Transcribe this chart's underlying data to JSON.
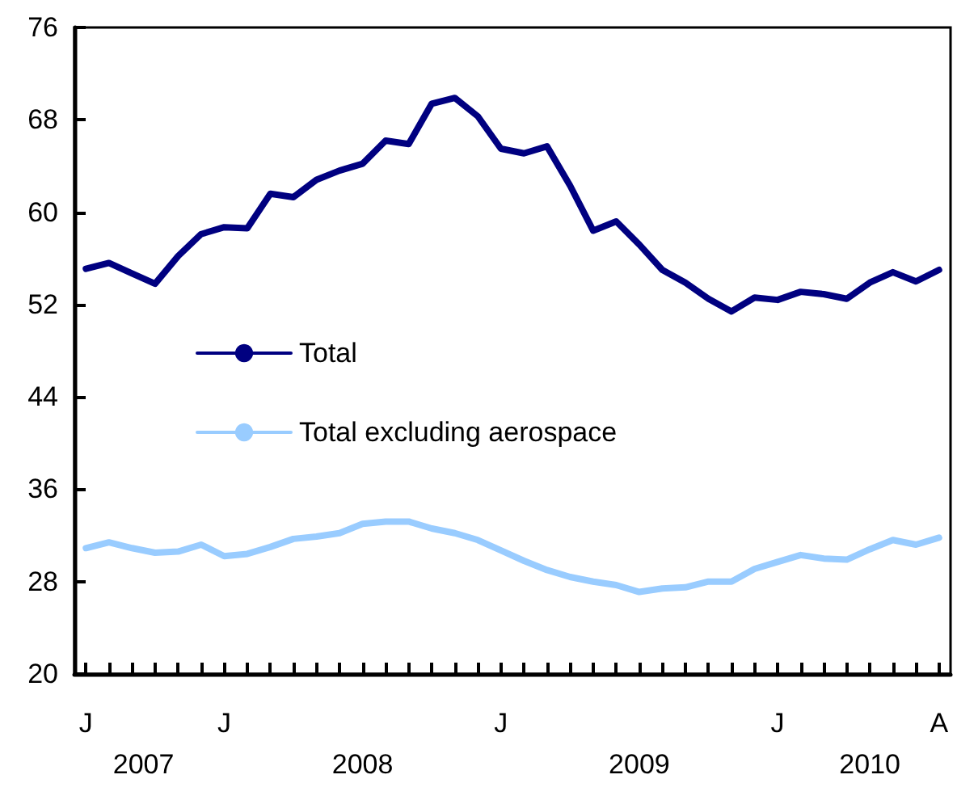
{
  "chart_data": {
    "type": "line",
    "categories": [
      "J",
      null,
      null,
      null,
      null,
      null,
      "J",
      null,
      null,
      null,
      null,
      null,
      null,
      null,
      null,
      null,
      null,
      null,
      "J",
      null,
      null,
      null,
      null,
      null,
      null,
      null,
      null,
      null,
      null,
      null,
      "J",
      null,
      null,
      null,
      null,
      null,
      null,
      "A"
    ],
    "series": [
      {
        "name": "Total",
        "color": "#000080",
        "values": [
          55.1,
          55.6,
          54.7,
          53.8,
          56.2,
          58.1,
          58.7,
          58.6,
          61.6,
          61.3,
          62.8,
          63.6,
          64.2,
          66.2,
          65.9,
          69.4,
          69.9,
          68.3,
          65.5,
          65.1,
          65.7,
          62.3,
          58.4,
          59.2,
          57.2,
          55.0,
          53.9,
          52.5,
          51.4,
          52.6,
          52.4,
          53.1,
          52.9,
          52.5,
          53.9,
          54.8,
          54.0,
          55.0
        ]
      },
      {
        "name": "Total excluding aerospace",
        "color": "#99ccff",
        "values": [
          30.9,
          31.4,
          30.9,
          30.5,
          30.6,
          31.2,
          30.2,
          30.4,
          31.0,
          31.7,
          31.9,
          32.2,
          33.0,
          33.2,
          33.2,
          32.6,
          32.2,
          31.6,
          30.7,
          29.8,
          29.0,
          28.4,
          28.0,
          27.7,
          27.1,
          27.4,
          27.5,
          28.0,
          28.0,
          29.1,
          29.7,
          30.3,
          30.0,
          29.9,
          30.8,
          31.6,
          31.2,
          31.8
        ]
      }
    ],
    "ylim": [
      20,
      76
    ],
    "yticks": [
      20,
      28,
      36,
      44,
      52,
      60,
      68,
      76
    ],
    "grid": false,
    "legend": "left",
    "marker": "none",
    "line_style": "solid",
    "annotations": [
      "2007",
      "2008",
      "2009",
      "2010"
    ]
  }
}
